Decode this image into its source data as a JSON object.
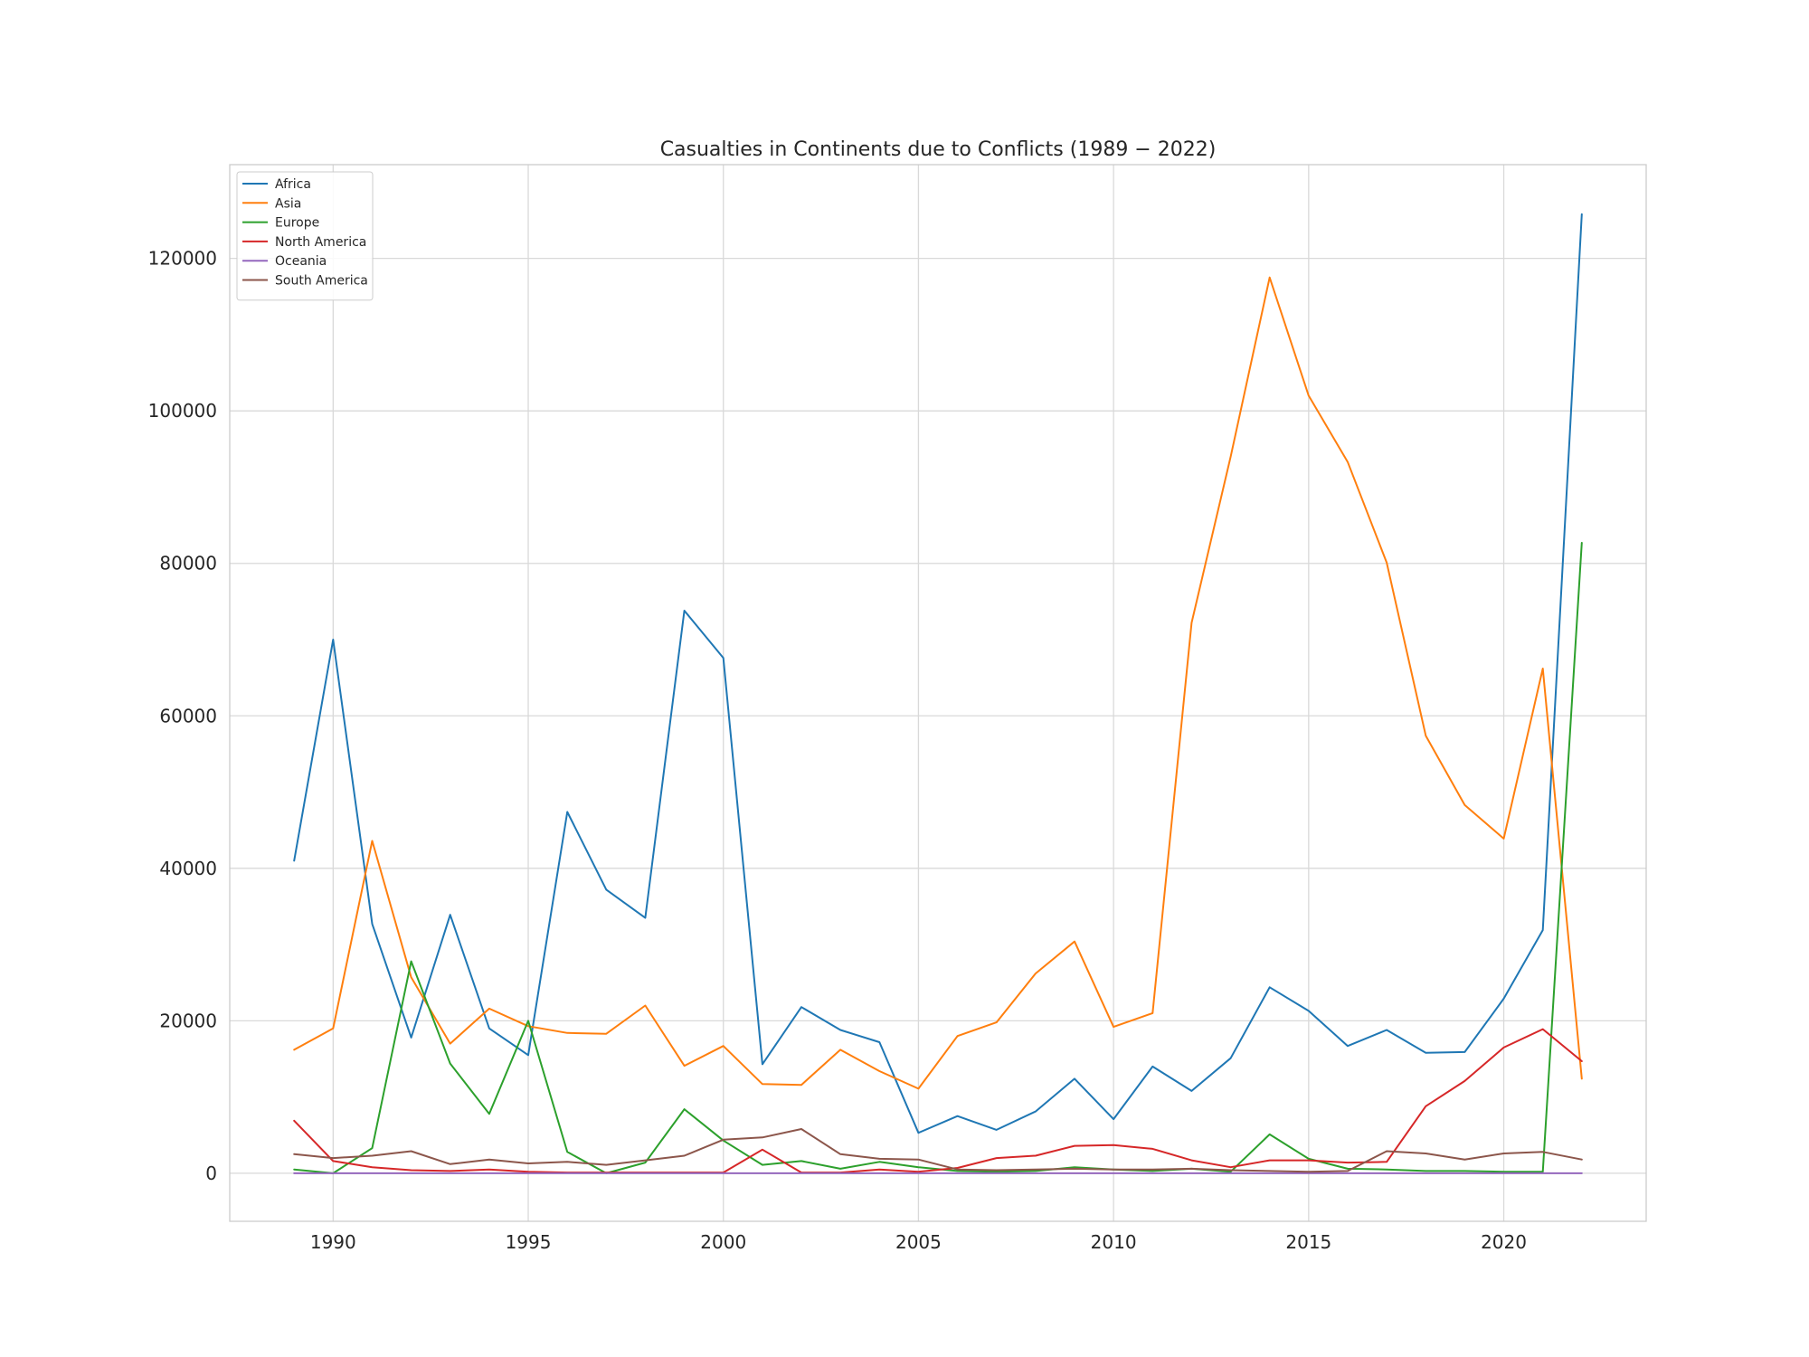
{
  "chart_data": {
    "type": "line",
    "title": "Casualties in Continents due to Conflicts (1989 − 2022)",
    "xlabel": "",
    "ylabel": "",
    "xlim": [
      1987.35,
      2023.65
    ],
    "ylim": [
      -6300,
      132300
    ],
    "xticks": [
      1990,
      1995,
      2000,
      2005,
      2010,
      2015,
      2020
    ],
    "yticks": [
      0,
      20000,
      40000,
      60000,
      80000,
      100000,
      120000
    ],
    "grid": true,
    "legend_position": "top-left",
    "x": [
      1989,
      1990,
      1991,
      1992,
      1993,
      1994,
      1995,
      1996,
      1997,
      1998,
      1999,
      2000,
      2001,
      2002,
      2003,
      2004,
      2005,
      2006,
      2007,
      2008,
      2009,
      2010,
      2011,
      2012,
      2013,
      2014,
      2015,
      2016,
      2017,
      2018,
      2019,
      2020,
      2021,
      2022
    ],
    "series": [
      {
        "name": "Africa",
        "color": "#1f77b4",
        "values": [
          41000,
          70000,
          32700,
          17800,
          33900,
          19000,
          15500,
          47400,
          37200,
          33500,
          73800,
          67600,
          14300,
          21800,
          18800,
          17200,
          5300,
          7500,
          5700,
          8100,
          12400,
          7100,
          14000,
          10800,
          15100,
          24400,
          21300,
          16700,
          18800,
          15800,
          15900,
          22900,
          31900,
          125800
        ]
      },
      {
        "name": "Asia",
        "color": "#ff7f0e",
        "values": [
          16200,
          19000,
          43600,
          25700,
          17000,
          21600,
          19300,
          18400,
          18300,
          22000,
          14100,
          16700,
          11700,
          11600,
          16200,
          13400,
          11100,
          18000,
          19800,
          26200,
          30400,
          19200,
          21000,
          72200,
          94000,
          117500,
          102000,
          93300,
          80100,
          57400,
          48300,
          43900,
          66200,
          12400
        ]
      },
      {
        "name": "Europe",
        "color": "#2ca02c",
        "values": [
          500,
          0,
          3300,
          27800,
          14400,
          7800,
          20000,
          2800,
          0,
          1400,
          8400,
          4300,
          1100,
          1600,
          600,
          1500,
          800,
          300,
          200,
          300,
          800,
          500,
          300,
          600,
          200,
          5100,
          1900,
          600,
          500,
          300,
          300,
          200,
          200,
          82700
        ]
      },
      {
        "name": "North America",
        "color": "#d62728",
        "values": [
          6900,
          1600,
          800,
          400,
          300,
          500,
          200,
          100,
          100,
          100,
          100,
          100,
          3100,
          100,
          100,
          500,
          200,
          700,
          2000,
          2300,
          3600,
          3700,
          3200,
          1700,
          800,
          1700,
          1700,
          1400,
          1500,
          8800,
          12100,
          16500,
          18900,
          14700
        ]
      },
      {
        "name": "Oceania",
        "color": "#9467bd",
        "values": [
          0,
          0,
          0,
          0,
          0,
          0,
          0,
          0,
          0,
          0,
          0,
          0,
          0,
          0,
          0,
          0,
          0,
          0,
          0,
          0,
          0,
          0,
          0,
          0,
          0,
          0,
          0,
          0,
          0,
          0,
          0,
          0,
          0,
          0
        ]
      },
      {
        "name": "South America",
        "color": "#8c564b",
        "values": [
          2500,
          2000,
          2300,
          2900,
          1200,
          1800,
          1300,
          1500,
          1100,
          1700,
          2300,
          4400,
          4700,
          5800,
          2500,
          1900,
          1800,
          500,
          400,
          500,
          600,
          500,
          500,
          600,
          400,
          300,
          200,
          300,
          2900,
          2600,
          1800,
          2600,
          2800,
          1800
        ]
      }
    ]
  }
}
